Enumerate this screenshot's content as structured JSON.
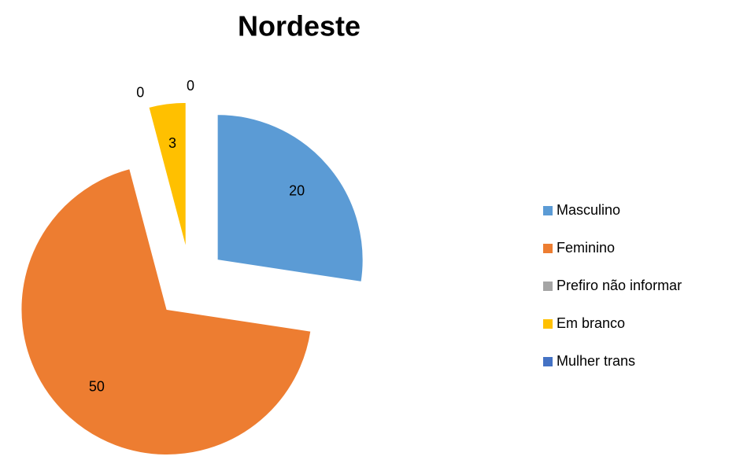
{
  "chart_data": {
    "type": "pie",
    "title": "Nordeste",
    "categories": [
      "Masculino",
      "Feminino",
      "Prefiro não informar",
      "Em branco",
      "Mulher trans"
    ],
    "values": [
      20,
      50,
      0,
      3,
      0
    ],
    "colors": [
      "#5b9bd5",
      "#ed7d31",
      "#a5a5a5",
      "#ffc000",
      "#4472c4"
    ],
    "legend": "right"
  }
}
